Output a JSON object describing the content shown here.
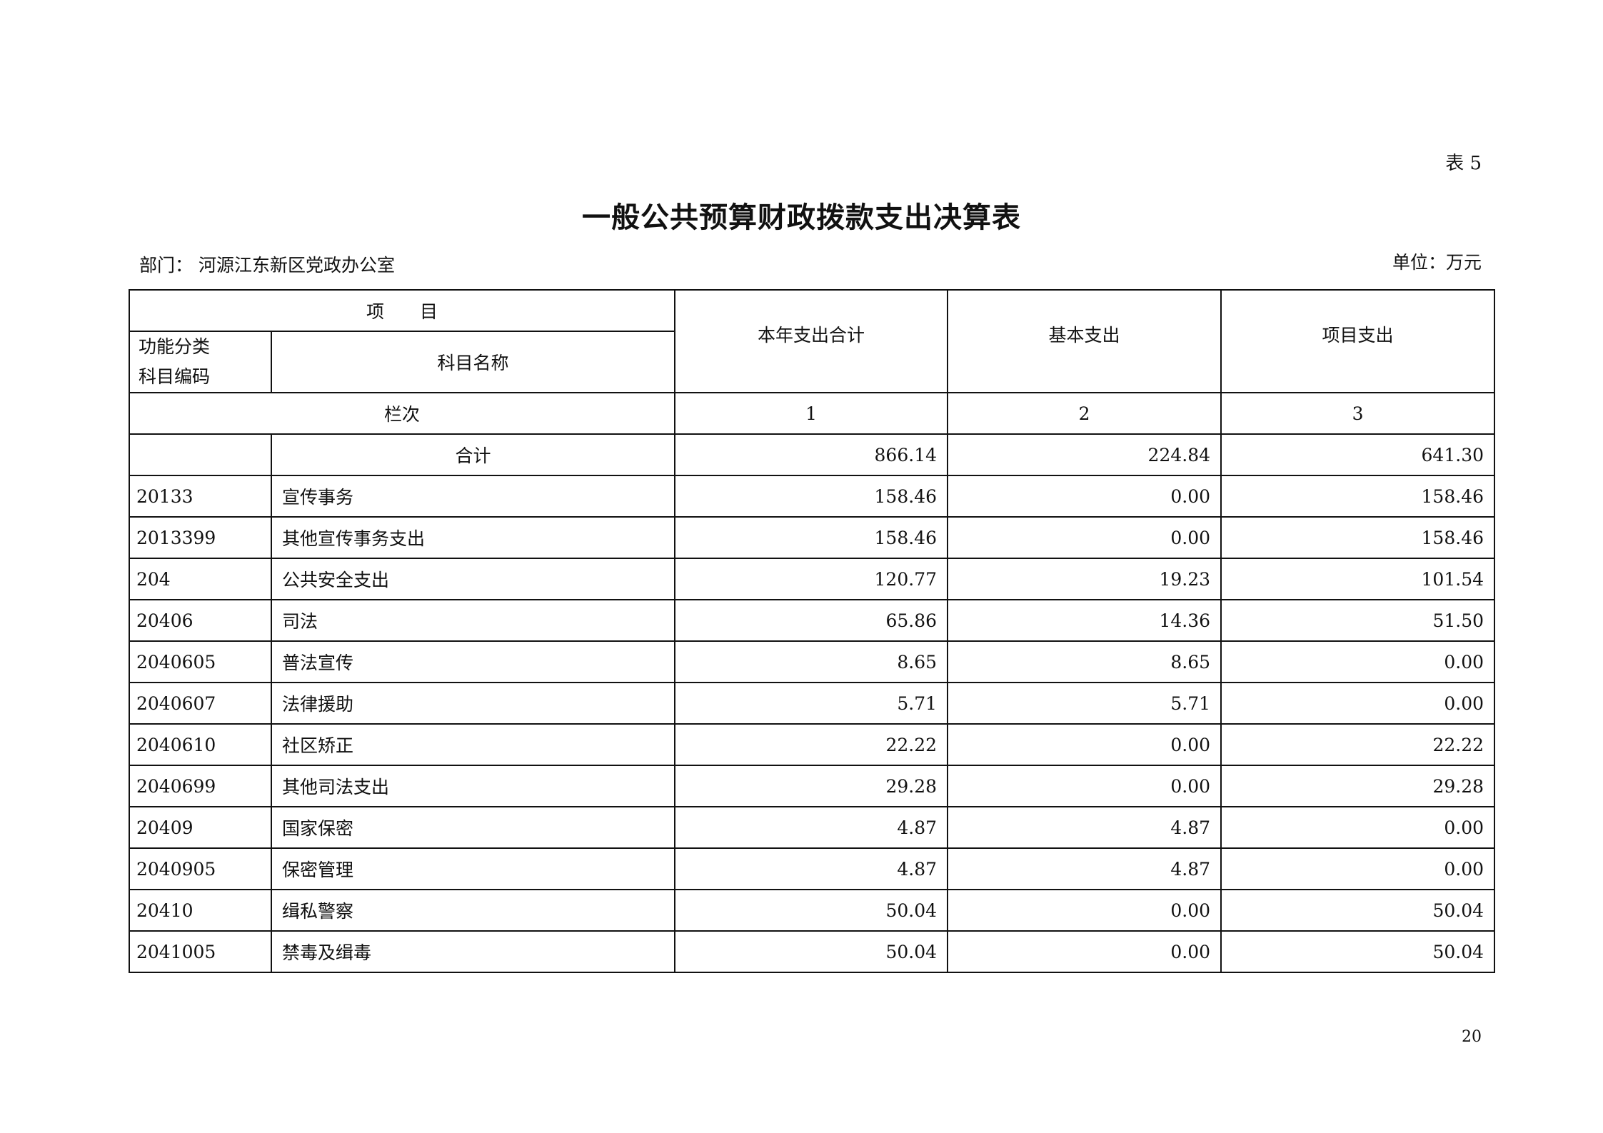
{
  "table_no": "表 5",
  "title": "一般公共预算财政拨款支出决算表",
  "department": "部门：  河源江东新区党政办公室",
  "unit": "单位：万元",
  "header": {
    "item": "项　　目",
    "code": "功能分类科目编码",
    "code_line1": "功能分类",
    "code_line2": "科目编码",
    "name": "科目名称",
    "col1": "本年支出合计",
    "col2": "基本支出",
    "col3": "项目支出",
    "row_index_label": "栏次",
    "idx1": "1",
    "idx2": "2",
    "idx3": "3"
  },
  "total": {
    "label": "合计",
    "total": "866.14",
    "basic": "224.84",
    "project": "641.30"
  },
  "rows": [
    {
      "code": "20133",
      "name": "宣传事务",
      "total": "158.46",
      "basic": "0.00",
      "project": "158.46"
    },
    {
      "code": "2013399",
      "name": "其他宣传事务支出",
      "total": "158.46",
      "basic": "0.00",
      "project": "158.46"
    },
    {
      "code": "204",
      "name": "公共安全支出",
      "total": "120.77",
      "basic": "19.23",
      "project": "101.54"
    },
    {
      "code": "20406",
      "name": "司法",
      "total": "65.86",
      "basic": "14.36",
      "project": "51.50"
    },
    {
      "code": "2040605",
      "name": "普法宣传",
      "total": "8.65",
      "basic": "8.65",
      "project": "0.00"
    },
    {
      "code": "2040607",
      "name": "法律援助",
      "total": "5.71",
      "basic": "5.71",
      "project": "0.00"
    },
    {
      "code": "2040610",
      "name": "社区矫正",
      "total": "22.22",
      "basic": "0.00",
      "project": "22.22"
    },
    {
      "code": "2040699",
      "name": "其他司法支出",
      "total": "29.28",
      "basic": "0.00",
      "project": "29.28"
    },
    {
      "code": "20409",
      "name": "国家保密",
      "total": "4.87",
      "basic": "4.87",
      "project": "0.00"
    },
    {
      "code": "2040905",
      "name": "保密管理",
      "total": "4.87",
      "basic": "4.87",
      "project": "0.00"
    },
    {
      "code": "20410",
      "name": "缉私警察",
      "total": "50.04",
      "basic": "0.00",
      "project": "50.04"
    },
    {
      "code": "2041005",
      "name": "禁毒及缉毒",
      "total": "50.04",
      "basic": "0.00",
      "project": "50.04"
    }
  ],
  "page_number": "20"
}
